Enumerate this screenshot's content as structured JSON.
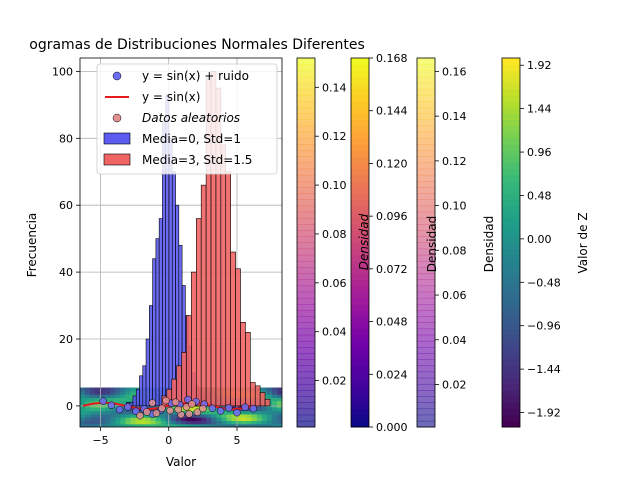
{
  "chart_data": {
    "type": "bar",
    "title": "ogramas de Distribuciones Normales Diferentes",
    "xlabel": "Valor",
    "ylabel": "Frecuencia",
    "xlim": [
      -6.5,
      8.3
    ],
    "ylim": [
      -6.3,
      104
    ],
    "xticks": [
      -5,
      0,
      5
    ],
    "yticks": [
      0,
      20,
      40,
      60,
      80,
      100
    ],
    "grid": true,
    "legend_position": "top-right",
    "legend": [
      {
        "label": "y = sin(x) + ruido",
        "kind": "scatter",
        "color": "#6d6df2"
      },
      {
        "label": "y = sin(x)",
        "kind": "line",
        "color": "#e41a1c"
      },
      {
        "label": "Datos aleatorios",
        "kind": "scatter",
        "color": "#e39090",
        "italic": true
      },
      {
        "label": "Media=0, Std=1",
        "kind": "bar",
        "color": "#5b5bf0"
      },
      {
        "label": "Media=3, Std=1.5",
        "kind": "bar",
        "color": "#f06464"
      }
    ],
    "series": [
      {
        "name": "Media=0, Std=1",
        "type": "histogram",
        "color": "#5b5bf0",
        "bin_width": 0.24,
        "bin_starts": [
          -3.1,
          -2.86,
          -2.62,
          -2.38,
          -2.14,
          -1.9,
          -1.66,
          -1.42,
          -1.18,
          -0.94,
          -0.7,
          -0.46,
          -0.22,
          0.02,
          0.26,
          0.5,
          0.74,
          0.98,
          1.22,
          1.46,
          1.7,
          1.94,
          2.18,
          2.42,
          2.66,
          2.9
        ],
        "values": [
          1,
          1,
          3,
          5,
          9,
          12,
          20,
          30,
          44,
          50,
          56,
          85,
          93,
          80,
          70,
          60,
          48,
          36,
          27,
          18,
          10,
          6,
          3,
          2,
          1,
          1
        ]
      },
      {
        "name": "Media=3, Std=1.5",
        "type": "histogram",
        "color": "#f06464",
        "bin_width": 0.36,
        "bin_starts": [
          -0.5,
          -0.14,
          0.22,
          0.58,
          0.94,
          1.3,
          1.66,
          2.02,
          2.38,
          2.74,
          3.1,
          3.46,
          3.82,
          4.18,
          4.54,
          4.9,
          5.26,
          5.62,
          5.98,
          6.34,
          6.7,
          7.06
        ],
        "values": [
          3,
          5,
          8,
          12,
          16,
          27,
          40,
          56,
          66,
          98,
          100,
          95,
          78,
          70,
          46,
          41,
          25,
          22,
          7,
          6,
          4,
          2
        ]
      },
      {
        "name": "y = sin(x)",
        "type": "line",
        "color": "#e41a1c",
        "x": [
          -6.28,
          -5.5,
          -4.7,
          -3.9,
          -3.14,
          -2.4,
          -1.57,
          -0.8,
          0,
          0.8,
          1.57,
          2.4,
          3.14,
          3.9,
          4.7,
          5.5,
          6.28
        ],
        "y": [
          0,
          0.71,
          1,
          0.69,
          0,
          -0.68,
          -1,
          -0.72,
          0,
          0.72,
          1,
          0.68,
          0,
          -0.69,
          -1,
          -0.71,
          0
        ]
      },
      {
        "name": "y = sin(x) + ruido",
        "type": "scatter",
        "color": "#6d6df2",
        "x": [
          -4.8,
          -4.2,
          -3.6,
          -3.0,
          -2.4,
          -1.8,
          -1.2,
          -0.6,
          0.2,
          0.8,
          1.4,
          2.0,
          2.6,
          3.2,
          3.8,
          4.4,
          5.0,
          5.6,
          6.2
        ],
        "y": [
          1.4,
          0.2,
          -1.1,
          -0.3,
          -1.6,
          -0.9,
          -2.4,
          -1.3,
          0.8,
          0.4,
          1.9,
          1.3,
          0.5,
          -0.7,
          -1.5,
          -0.6,
          -2.0,
          -0.4,
          -0.8
        ]
      },
      {
        "name": "Datos aleatorios",
        "type": "scatter",
        "color": "#e39090",
        "x": [
          -1.6,
          -1.2,
          -0.9,
          -0.5,
          0.1,
          0.5,
          0.9,
          1.3,
          1.7,
          2.1,
          2.5,
          -2.1,
          -0.2,
          0.7,
          1.5
        ],
        "y": [
          -1.8,
          0.9,
          -2.2,
          -0.7,
          -1.4,
          1.1,
          -2.6,
          -0.3,
          0.6,
          -1.9,
          -0.8,
          -2.9,
          1.6,
          -1.1,
          -2.4
        ]
      }
    ],
    "background_fill": {
      "type": "filled_contour",
      "x_range": [
        -6.5,
        8.3
      ],
      "y_range": [
        -6.3,
        5.5
      ],
      "colormap": "viridis"
    },
    "colorbars": [
      {
        "colormap": "plasma",
        "alpha": 0.7,
        "range": [
          0.001,
          0.152
        ],
        "ticks": [
          "0.02",
          "0.04",
          "0.06",
          "0.08",
          "0.10",
          "0.12",
          "0.14"
        ],
        "tick_values": [
          0.02,
          0.04,
          0.06,
          0.08,
          0.1,
          0.12,
          0.14
        ],
        "label": ""
      },
      {
        "colormap": "plasma",
        "alpha": 1,
        "range": [
          0.0,
          0.168
        ],
        "ticks": [
          "0.000",
          "0.024",
          "0.048",
          "0.072",
          "0.096",
          "0.120",
          "0.144",
          "0.168"
        ],
        "tick_values": [
          0,
          0.024,
          0.048,
          0.072,
          0.096,
          0.12,
          0.144,
          0.168
        ],
        "label": "Densidad",
        "label_italic": true
      },
      {
        "colormap": "plasma",
        "alpha": 0.6,
        "range": [
          0.001,
          0.166
        ],
        "ticks": [
          "0.02",
          "0.04",
          "0.06",
          "0.08",
          "0.10",
          "0.12",
          "0.14",
          "0.16"
        ],
        "tick_values": [
          0.02,
          0.04,
          0.06,
          0.08,
          0.1,
          0.12,
          0.14,
          0.16
        ],
        "label": "Densidad"
      },
      {
        "colormap": "viridis",
        "alpha": 1,
        "range": [
          -2.08,
          2.0
        ],
        "ticks": [
          "−1.92",
          "−1.44",
          "−0.96",
          "−0.48",
          "0.00",
          "0.48",
          "0.96",
          "1.44",
          "1.92"
        ],
        "tick_values": [
          -1.92,
          -1.44,
          -0.96,
          -0.48,
          0,
          0.48,
          0.96,
          1.44,
          1.92
        ],
        "label": "Valor de Z"
      }
    ],
    "extra_labels": [
      "Densidad"
    ]
  }
}
